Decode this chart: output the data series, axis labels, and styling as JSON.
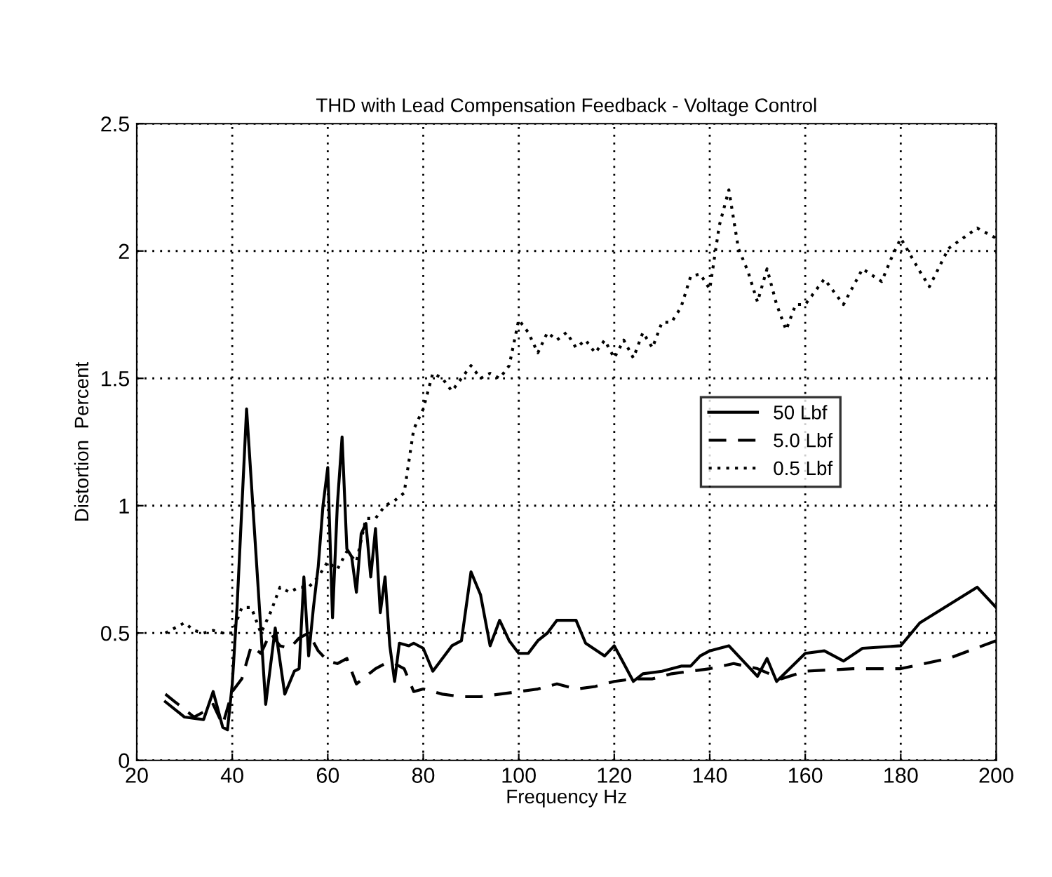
{
  "chart_data": {
    "type": "line",
    "title": "THD with Lead Compensation Feedback - Voltage Control",
    "xlabel": "Frequency Hz",
    "ylabel": "Distortion  Percent",
    "xlim": [
      20,
      200
    ],
    "xticks": [
      20,
      40,
      60,
      80,
      100,
      120,
      140,
      160,
      180,
      200
    ],
    "ylim": [
      0,
      2.5
    ],
    "yticks": [
      0,
      0.5,
      1,
      1.5,
      2,
      2.5
    ],
    "grid": true,
    "legend": "right",
    "marker": "none",
    "series": [
      {
        "name": "50 Lbf",
        "color": "#000000",
        "line_style": "solid",
        "x": [
          26,
          30,
          34,
          36,
          38,
          39,
          40,
          41,
          43,
          45,
          47,
          49,
          51,
          53,
          54,
          55,
          56,
          57,
          58,
          59,
          60,
          61,
          62,
          63,
          64,
          65,
          66,
          67,
          68,
          69,
          70,
          71,
          72,
          73,
          74,
          75,
          77,
          78,
          80,
          82,
          86,
          88,
          90,
          92,
          94,
          96,
          98,
          100,
          102,
          104,
          106,
          108,
          112,
          114,
          118,
          120,
          122,
          124,
          126,
          130,
          134,
          136,
          138,
          140,
          144,
          150,
          152,
          154,
          160,
          164,
          168,
          172,
          180,
          184,
          196,
          200
        ],
        "values": [
          0.23,
          0.17,
          0.16,
          0.27,
          0.13,
          0.12,
          0.3,
          0.6,
          1.38,
          0.8,
          0.22,
          0.52,
          0.26,
          0.35,
          0.36,
          0.72,
          0.41,
          0.6,
          0.76,
          1.0,
          1.15,
          0.56,
          1.0,
          1.27,
          0.83,
          0.8,
          0.66,
          0.89,
          0.93,
          0.72,
          0.91,
          0.58,
          0.72,
          0.45,
          0.31,
          0.46,
          0.45,
          0.46,
          0.44,
          0.35,
          0.45,
          0.47,
          0.74,
          0.65,
          0.45,
          0.55,
          0.47,
          0.42,
          0.42,
          0.47,
          0.5,
          0.55,
          0.55,
          0.46,
          0.41,
          0.45,
          0.38,
          0.31,
          0.34,
          0.35,
          0.37,
          0.37,
          0.41,
          0.43,
          0.45,
          0.33,
          0.4,
          0.31,
          0.42,
          0.43,
          0.39,
          0.44,
          0.45,
          0.54,
          0.68,
          0.6
        ]
      },
      {
        "name": "5.0 Lbf",
        "color": "#000000",
        "line_style": "dashed",
        "x": [
          26,
          28,
          30,
          32,
          34,
          36,
          38,
          40,
          42,
          44,
          46,
          48,
          50,
          52,
          54,
          56,
          58,
          60,
          62,
          64,
          66,
          68,
          70,
          72,
          74,
          76,
          78,
          80,
          84,
          88,
          92,
          96,
          100,
          104,
          108,
          112,
          116,
          120,
          124,
          128,
          132,
          136,
          140,
          145,
          150,
          155,
          160,
          170,
          180,
          190,
          200
        ],
        "values": [
          0.26,
          0.23,
          0.2,
          0.17,
          0.19,
          0.22,
          0.14,
          0.27,
          0.32,
          0.45,
          0.42,
          0.5,
          0.45,
          0.44,
          0.48,
          0.5,
          0.43,
          0.39,
          0.38,
          0.4,
          0.3,
          0.33,
          0.36,
          0.38,
          0.38,
          0.36,
          0.27,
          0.28,
          0.26,
          0.25,
          0.25,
          0.26,
          0.27,
          0.28,
          0.3,
          0.28,
          0.29,
          0.31,
          0.32,
          0.32,
          0.34,
          0.35,
          0.36,
          0.38,
          0.36,
          0.32,
          0.35,
          0.36,
          0.36,
          0.4,
          0.47
        ]
      },
      {
        "name": "0.5 Lbf",
        "color": "#000000",
        "line_style": "dotted",
        "x": [
          26,
          30,
          32,
          34,
          36,
          38,
          40,
          42,
          44,
          46,
          48,
          50,
          52,
          54,
          56,
          58,
          60,
          62,
          64,
          66,
          68,
          70,
          72,
          74,
          76,
          78,
          80,
          82,
          84,
          86,
          88,
          90,
          92,
          94,
          96,
          98,
          100,
          102,
          104,
          106,
          108,
          110,
          112,
          114,
          116,
          118,
          120,
          122,
          124,
          126,
          128,
          130,
          132,
          134,
          136,
          138,
          140,
          142,
          144,
          146,
          148,
          150,
          152,
          154,
          156,
          158,
          160,
          164,
          168,
          172,
          176,
          178,
          180,
          184,
          186,
          190,
          196,
          200
        ],
        "values": [
          0.5,
          0.54,
          0.51,
          0.5,
          0.51,
          0.5,
          0.5,
          0.6,
          0.6,
          0.5,
          0.58,
          0.68,
          0.66,
          0.68,
          0.68,
          0.72,
          0.78,
          0.75,
          0.82,
          0.78,
          0.95,
          0.95,
          1.0,
          1.02,
          1.05,
          1.3,
          1.38,
          1.52,
          1.5,
          1.45,
          1.5,
          1.55,
          1.5,
          1.52,
          1.5,
          1.55,
          1.73,
          1.68,
          1.6,
          1.68,
          1.65,
          1.68,
          1.62,
          1.65,
          1.6,
          1.65,
          1.58,
          1.65,
          1.58,
          1.68,
          1.62,
          1.72,
          1.72,
          1.78,
          1.9,
          1.91,
          1.85,
          2.1,
          2.24,
          2.01,
          1.92,
          1.8,
          1.93,
          1.79,
          1.69,
          1.79,
          1.79,
          1.89,
          1.79,
          1.93,
          1.88,
          1.97,
          2.05,
          1.92,
          1.86,
          2.01,
          2.09,
          2.05
        ]
      }
    ]
  }
}
